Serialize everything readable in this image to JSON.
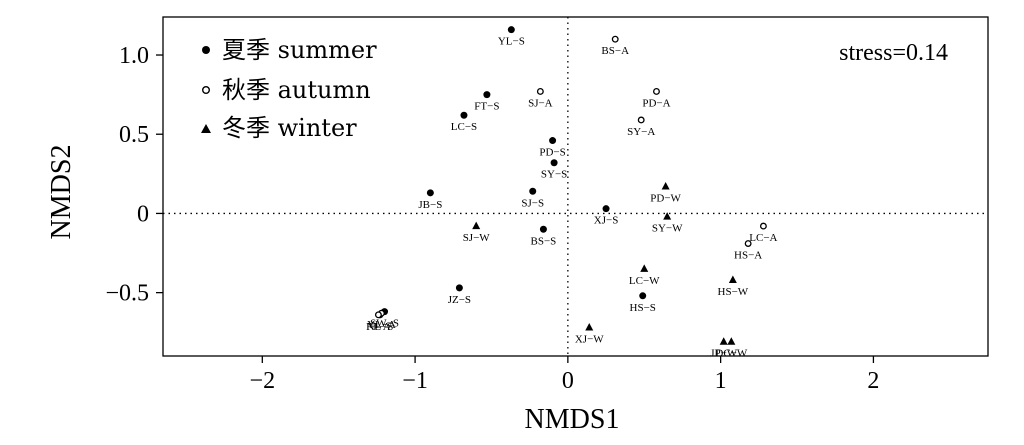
{
  "chart_data": {
    "type": "scatter",
    "xlabel": "NMDS1",
    "ylabel": "NMDS2",
    "xlim": [
      -2.65,
      2.75
    ],
    "ylim": [
      -0.9,
      1.24
    ],
    "xticks": [
      -2,
      -1,
      0,
      1,
      2
    ],
    "yticks": [
      -0.5,
      0,
      0.5,
      1.0
    ],
    "ytick_labels": [
      "−0.5",
      "0",
      "0.5",
      "1.0"
    ],
    "xtick_labels": [
      "−2",
      "−1",
      "0",
      "1",
      "2"
    ],
    "reference_lines": {
      "x": 0,
      "y": 0,
      "style": "dotted"
    },
    "annotation": "stress=0.14",
    "legend": {
      "position": "top-left",
      "entries": [
        {
          "marker": "filled-circle",
          "label": "夏季 summer"
        },
        {
          "marker": "open-circle",
          "label": "秋季 autumn"
        },
        {
          "marker": "filled-triangle",
          "label": "冬季 winter"
        }
      ]
    },
    "series": [
      {
        "name": "夏季 summer",
        "marker": "filled-circle",
        "points": [
          {
            "label": "YL−S",
            "x": -0.37,
            "y": 1.16
          },
          {
            "label": "FT−S",
            "x": -0.53,
            "y": 0.75
          },
          {
            "label": "LC−S",
            "x": -0.68,
            "y": 0.62
          },
          {
            "label": "PD−S",
            "x": -0.1,
            "y": 0.46
          },
          {
            "label": "SY−S",
            "x": -0.09,
            "y": 0.32
          },
          {
            "label": "JB−S",
            "x": -0.9,
            "y": 0.13
          },
          {
            "label": "SJ−S",
            "x": -0.23,
            "y": 0.14
          },
          {
            "label": "XJ−S",
            "x": 0.25,
            "y": 0.03
          },
          {
            "label": "BS−S",
            "x": -0.16,
            "y": -0.1
          },
          {
            "label": "JZ−S",
            "x": -0.71,
            "y": -0.47
          },
          {
            "label": "HS−S",
            "x": 0.49,
            "y": -0.52
          },
          {
            "label": "SW−S",
            "x": -1.2,
            "y": -0.62
          },
          {
            "label": "NL−S",
            "x": -1.23,
            "y": -0.64
          }
        ]
      },
      {
        "name": "秋季 autumn",
        "marker": "open-circle",
        "points": [
          {
            "label": "BS−A",
            "x": 0.31,
            "y": 1.1
          },
          {
            "label": "SJ−A",
            "x": -0.18,
            "y": 0.77
          },
          {
            "label": "PD−A",
            "x": 0.58,
            "y": 0.77
          },
          {
            "label": "SY−A",
            "x": 0.48,
            "y": 0.59
          },
          {
            "label": "LC−A",
            "x": 1.28,
            "y": -0.08
          },
          {
            "label": "HS−A",
            "x": 1.18,
            "y": -0.19
          },
          {
            "label": "YL−A",
            "x": -1.22,
            "y": -0.63
          },
          {
            "label": "FJ−A",
            "x": -1.24,
            "y": -0.64
          }
        ]
      },
      {
        "name": "冬季 winter",
        "marker": "filled-triangle",
        "points": [
          {
            "label": "PD−W",
            "x": 0.64,
            "y": 0.17
          },
          {
            "label": "SY−W",
            "x": 0.65,
            "y": -0.02
          },
          {
            "label": "SJ−W",
            "x": -0.6,
            "y": -0.08
          },
          {
            "label": "LC−W",
            "x": 0.5,
            "y": -0.35
          },
          {
            "label": "HS−W",
            "x": 1.08,
            "y": -0.42
          },
          {
            "label": "XJ−W",
            "x": 0.14,
            "y": -0.72
          },
          {
            "label": "JP−W",
            "x": 1.02,
            "y": -0.81
          },
          {
            "label": "DC−W",
            "x": 1.07,
            "y": -0.81
          }
        ]
      }
    ]
  }
}
